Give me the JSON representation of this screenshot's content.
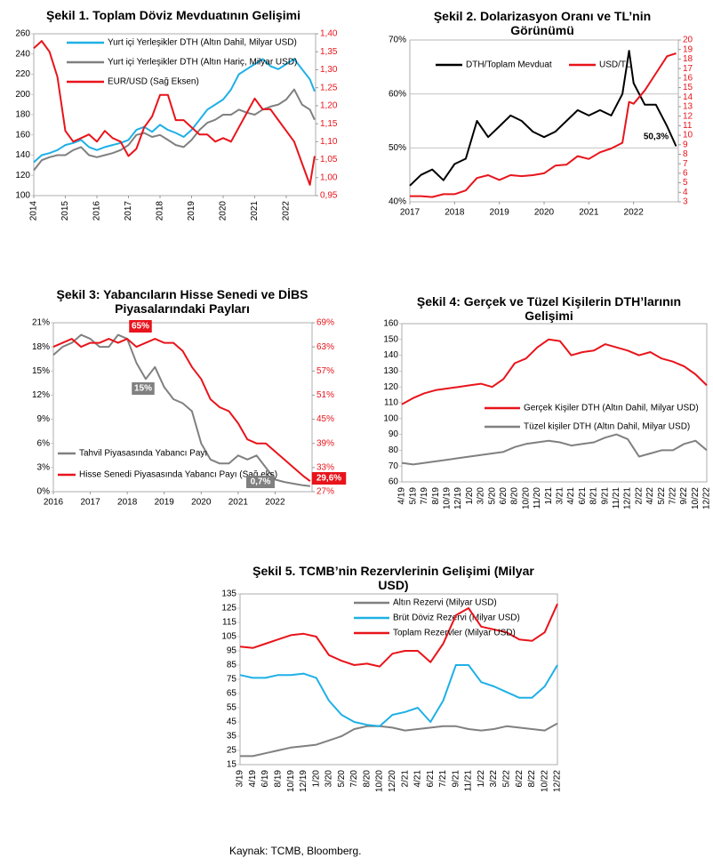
{
  "chart_data": [
    {
      "type": "line",
      "title": "Şekil 1. Toplam Döviz Mevduatının Gelişimi",
      "x": [
        2014,
        2014.25,
        2014.5,
        2014.75,
        2015,
        2015.25,
        2015.5,
        2015.75,
        2016,
        2016.25,
        2016.5,
        2016.75,
        2017,
        2017.25,
        2017.5,
        2017.75,
        2018,
        2018.25,
        2018.5,
        2018.75,
        2019,
        2019.25,
        2019.5,
        2019.75,
        2020,
        2020.25,
        2020.5,
        2020.75,
        2021,
        2021.25,
        2021.5,
        2021.75,
        2022,
        2022.25,
        2022.5,
        2022.75,
        2022.9
      ],
      "series": [
        {
          "name": "Yurt içi Yerleşikler DTH (Altın Dahil, Milyar USD)",
          "color": "#1fb0e6",
          "values": [
            133,
            140,
            142,
            145,
            150,
            152,
            155,
            148,
            145,
            148,
            150,
            152,
            155,
            165,
            168,
            163,
            170,
            165,
            162,
            158,
            165,
            175,
            185,
            190,
            195,
            205,
            220,
            225,
            230,
            235,
            228,
            225,
            230,
            235,
            225,
            215,
            203
          ]
        },
        {
          "name": "Yurt içi Yerleşikler DTH (Altın Hariç, Milyar USD)",
          "color": "#808080",
          "values": [
            125,
            135,
            138,
            140,
            140,
            145,
            148,
            140,
            138,
            140,
            142,
            145,
            150,
            160,
            162,
            158,
            160,
            155,
            150,
            148,
            155,
            165,
            172,
            175,
            180,
            180,
            185,
            182,
            180,
            185,
            188,
            190,
            195,
            205,
            190,
            185,
            175
          ]
        },
        {
          "name": "EUR/USD (Sağ Eksen)",
          "color": "#e8141b",
          "axis": "y2",
          "values": [
            1.36,
            1.38,
            1.35,
            1.28,
            1.13,
            1.1,
            1.11,
            1.12,
            1.1,
            1.13,
            1.11,
            1.1,
            1.06,
            1.08,
            1.14,
            1.17,
            1.23,
            1.23,
            1.16,
            1.16,
            1.14,
            1.12,
            1.12,
            1.1,
            1.11,
            1.1,
            1.14,
            1.18,
            1.22,
            1.19,
            1.19,
            1.16,
            1.13,
            1.1,
            1.04,
            0.98,
            1.06
          ]
        }
      ],
      "xlim": [
        2014,
        2022.93
      ],
      "xticks": [
        2014,
        2015,
        2016,
        2017,
        2018,
        2019,
        2020,
        2021,
        2022
      ],
      "ylim": [
        100,
        260
      ],
      "yticks": [
        100,
        120,
        140,
        160,
        180,
        200,
        220,
        240,
        260
      ],
      "y2lim": [
        0.95,
        1.4
      ],
      "y2ticks": [
        {
          "value": 0.95,
          "label": "0,95"
        },
        {
          "value": 1.0,
          "label": "1,00"
        },
        {
          "value": 1.05,
          "label": "1,05"
        },
        {
          "value": 1.1,
          "label": "1,10"
        },
        {
          "value": 1.15,
          "label": "1,15"
        },
        {
          "value": 1.2,
          "label": "1,20"
        },
        {
          "value": 1.25,
          "label": "1,25"
        },
        {
          "value": 1.3,
          "label": "1,30"
        },
        {
          "value": 1.35,
          "label": "1,35"
        },
        {
          "value": 1.4,
          "label": "1,40"
        }
      ],
      "grid": false
    },
    {
      "type": "line",
      "title": "Şekil 2. Dolarizasyon Oranı ve TL’nin Görünümü",
      "x": [
        2017,
        2017.25,
        2017.5,
        2017.75,
        2018,
        2018.25,
        2018.5,
        2018.75,
        2019,
        2019.25,
        2019.5,
        2019.75,
        2020,
        2020.25,
        2020.5,
        2020.75,
        2021,
        2021.25,
        2021.5,
        2021.75,
        2021.9,
        2022,
        2022.25,
        2022.5,
        2022.75,
        2022.95
      ],
      "series": [
        {
          "name": "DTH/Toplam Mevduat",
          "color": "#000000",
          "values": [
            43,
            45,
            46,
            44,
            47,
            48,
            55,
            52,
            54,
            56,
            55,
            53,
            52,
            53,
            55,
            57,
            56,
            57,
            56,
            60,
            68,
            62,
            58,
            58,
            54,
            50.3
          ]
        },
        {
          "name": "USD/TL",
          "color": "#e8141b",
          "axis": "y2",
          "values": [
            3.6,
            3.6,
            3.5,
            3.8,
            3.8,
            4.2,
            5.5,
            5.8,
            5.3,
            5.8,
            5.7,
            5.8,
            6.0,
            6.8,
            6.9,
            7.8,
            7.5,
            8.2,
            8.6,
            9.2,
            13.5,
            13.3,
            14.7,
            16.5,
            18.3,
            18.6
          ]
        }
      ],
      "xlim": [
        2017,
        2023
      ],
      "xticks": [
        2017,
        2018,
        2019,
        2020,
        2021,
        2022
      ],
      "ylim": [
        40,
        70
      ],
      "yticks": [
        {
          "value": 40,
          "label": "40%"
        },
        {
          "value": 50,
          "label": "50%"
        },
        {
          "value": 60,
          "label": "60%"
        },
        {
          "value": 70,
          "label": "70%"
        }
      ],
      "y2lim": [
        3,
        20
      ],
      "y2ticks": [
        3,
        4,
        5,
        6,
        7,
        8,
        9,
        10,
        11,
        12,
        13,
        14,
        15,
        16,
        17,
        18,
        19,
        20
      ],
      "grid": true,
      "annotations": [
        {
          "text": "50,3%"
        }
      ]
    },
    {
      "type": "line",
      "title": "Şekil 3: Yabancıların Hisse Senedi ve DİBS Piyasalarındaki Payları",
      "x": [
        2016,
        2016.25,
        2016.5,
        2016.75,
        2017,
        2017.25,
        2017.5,
        2017.75,
        2018,
        2018.25,
        2018.5,
        2018.75,
        2019,
        2019.25,
        2019.5,
        2019.75,
        2020,
        2020.25,
        2020.5,
        2020.75,
        2021,
        2021.25,
        2021.5,
        2021.75,
        2022,
        2022.25,
        2022.5,
        2022.75,
        2022.95
      ],
      "series": [
        {
          "name": "Tahvil Piyasasında Yabancı Payı",
          "color": "#808080",
          "values": [
            17,
            18,
            18.5,
            19.5,
            19,
            18,
            18,
            19.5,
            19,
            16,
            14,
            15.5,
            13,
            11.5,
            11,
            10,
            6,
            4,
            3.5,
            3.5,
            4.5,
            4,
            4.5,
            3,
            1.5,
            1.2,
            1,
            0.8,
            0.7
          ]
        },
        {
          "name": "Hisse Senedi Piyasasında Yabancı Payı (Sağ eks)",
          "color": "#e8141b",
          "axis": "y2",
          "values": [
            63,
            64,
            65,
            63,
            64,
            64,
            65,
            64,
            65,
            63,
            64,
            65,
            64,
            64,
            62,
            58,
            55,
            50,
            48,
            47,
            44,
            40,
            39,
            39,
            37,
            35,
            33,
            31,
            29.6
          ]
        }
      ],
      "xlim": [
        2016,
        2023
      ],
      "xticks": [
        2016,
        2017,
        2018,
        2019,
        2020,
        2021,
        2022
      ],
      "ylim": [
        0,
        21
      ],
      "yticks": [
        {
          "value": 0,
          "label": "0%"
        },
        {
          "value": 3,
          "label": "3%"
        },
        {
          "value": 6,
          "label": "6%"
        },
        {
          "value": 9,
          "label": "9%"
        },
        {
          "value": 12,
          "label": "12%"
        },
        {
          "value": 15,
          "label": "15%"
        },
        {
          "value": 18,
          "label": "18%"
        },
        {
          "value": 21,
          "label": "21%"
        }
      ],
      "y2lim": [
        27,
        69
      ],
      "y2ticks": [
        {
          "value": 27,
          "label": "27%"
        },
        {
          "value": 33,
          "label": "33%"
        },
        {
          "value": 39,
          "label": "39%"
        },
        {
          "value": 45,
          "label": "45%"
        },
        {
          "value": 51,
          "label": "51%"
        },
        {
          "value": 57,
          "label": "57%"
        },
        {
          "value": 63,
          "label": "63%"
        },
        {
          "value": 69,
          "label": "69%"
        }
      ],
      "grid": false,
      "annotations": [
        {
          "text": "65%",
          "background": "#e8141b"
        },
        {
          "text": "15%",
          "background": "#808080"
        },
        {
          "text": "0,7%",
          "background": "#808080"
        },
        {
          "text": "29,6%",
          "background": "#e8141b"
        }
      ]
    },
    {
      "type": "line",
      "title": "Şekil 4: Gerçek ve Tüzel Kişilerin DTH’larının Gelişimi",
      "categories": [
        "4/19",
        "5/19",
        "7/19",
        "8/19",
        "10/19",
        "12/19",
        "1/20",
        "3/20",
        "5/20",
        "6/20",
        "8/20",
        "10/20",
        "11/20",
        "1/21",
        "3/21",
        "4/21",
        "6/21",
        "8/21",
        "9/21",
        "11/21",
        "12/21",
        "2/22",
        "4/22",
        "5/22",
        "7/22",
        "9/22",
        "10/22",
        "12/22"
      ],
      "series": [
        {
          "name": "Gerçek Kişiler DTH (Altın Dahil, Milyar USD)",
          "color": "#e8141b",
          "values": [
            109,
            113,
            116,
            118,
            119,
            120,
            121,
            122,
            120,
            125,
            135,
            138,
            145,
            150,
            149,
            140,
            142,
            143,
            147,
            145,
            143,
            140,
            142,
            138,
            136,
            133,
            128,
            121
          ]
        },
        {
          "name": "Tüzel kişiler DTH (Altın Dahil, Milyar USD)",
          "color": "#808080",
          "values": [
            72,
            71,
            72,
            73,
            74,
            75,
            76,
            77,
            78,
            79,
            82,
            84,
            85,
            86,
            85,
            83,
            84,
            85,
            88,
            90,
            87,
            76,
            78,
            80,
            80,
            84,
            86,
            80
          ]
        }
      ],
      "ylim": [
        60,
        160
      ],
      "yticks": [
        60,
        70,
        80,
        90,
        100,
        110,
        120,
        130,
        140,
        150,
        160
      ],
      "grid": false
    },
    {
      "type": "line",
      "title": "Şekil 5. TCMB’nin Rezervlerinin Gelişimi (Milyar USD)",
      "categories": [
        "3/19",
        "4/19",
        "6/19",
        "8/19",
        "10/19",
        "12/19",
        "1/20",
        "3/20",
        "5/20",
        "7/20",
        "8/20",
        "10/20",
        "12/20",
        "2/21",
        "4/21",
        "6/21",
        "7/21",
        "9/21",
        "11/21",
        "1/22",
        "3/22",
        "5/22",
        "6/22",
        "8/22",
        "10/22",
        "12/22"
      ],
      "series": [
        {
          "name": "Altın Rezervi (Milyar USD)",
          "color": "#808080",
          "values": [
            21,
            21,
            23,
            25,
            27,
            28,
            29,
            32,
            35,
            40,
            42,
            42,
            41,
            39,
            40,
            41,
            42,
            42,
            40,
            39,
            40,
            42,
            41,
            40,
            39,
            44
          ]
        },
        {
          "name": "Brüt Döviz Rezervi (Milyar USD)",
          "color": "#1fb0e6",
          "values": [
            78,
            76,
            76,
            78,
            78,
            79,
            76,
            60,
            50,
            45,
            43,
            42,
            50,
            52,
            55,
            45,
            60,
            85,
            85,
            73,
            70,
            66,
            62,
            62,
            70,
            85
          ]
        },
        {
          "name": "Toplam Rezervler (Milyar USD)",
          "color": "#e8141b",
          "values": [
            98,
            97,
            100,
            103,
            106,
            107,
            105,
            92,
            88,
            85,
            86,
            84,
            93,
            95,
            95,
            87,
            100,
            120,
            125,
            112,
            110,
            108,
            103,
            102,
            108,
            128
          ]
        }
      ],
      "ylim": [
        15,
        135
      ],
      "yticks": [
        15,
        25,
        35,
        45,
        55,
        65,
        75,
        85,
        95,
        105,
        115,
        125,
        135
      ],
      "grid": false
    }
  ],
  "footer": "Kaynak: TCMB, Bloomberg."
}
